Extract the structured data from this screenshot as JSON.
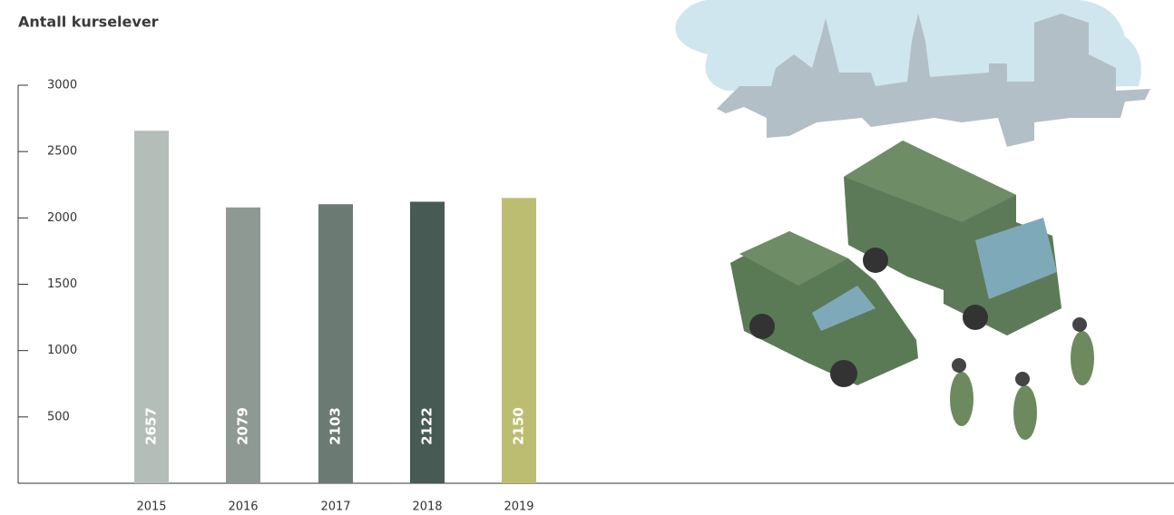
{
  "chart_data": {
    "type": "bar",
    "title": "Antall kurselever",
    "categories": [
      "2015",
      "2016",
      "2017",
      "2018",
      "2019"
    ],
    "values": [
      2657,
      2079,
      2103,
      2122,
      2150
    ],
    "colors": [
      "#b5bdb9",
      "#8f9994",
      "#6b7a73",
      "#475a54",
      "#bdbd72"
    ],
    "ylim": [
      0,
      3000
    ],
    "yticks": [
      500,
      1000,
      1500,
      2000,
      2500,
      3000
    ],
    "grid": false
  }
}
